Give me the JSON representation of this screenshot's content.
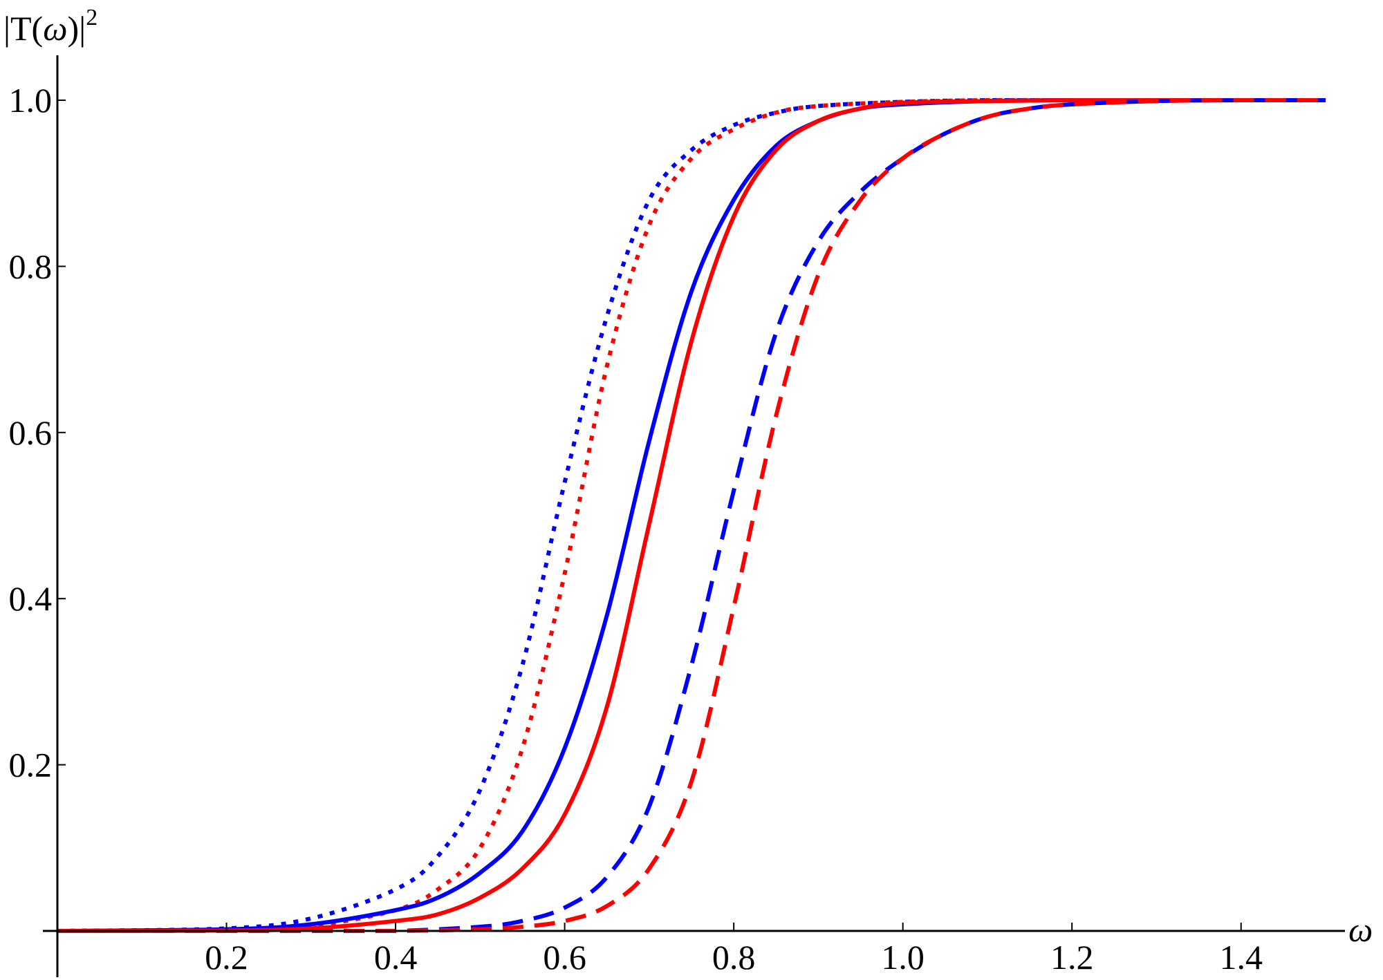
{
  "chart_data": {
    "type": "line",
    "title": "",
    "xlabel": "ω",
    "ylabel_parts": [
      "|T(",
      "ω",
      ")|",
      "2"
    ],
    "xlim": [
      0,
      1.5
    ],
    "ylim": [
      0,
      1.0
    ],
    "x_ticks": [
      0.2,
      0.4,
      0.6,
      0.8,
      1.0,
      1.2,
      1.4
    ],
    "x_tick_labels": [
      "0.2",
      "0.4",
      "0.6",
      "0.8",
      "1.0",
      "1.2",
      "1.4"
    ],
    "y_ticks": [
      0.2,
      0.4,
      0.6,
      0.8,
      1.0
    ],
    "y_tick_labels": [
      "0.2",
      "0.4",
      "0.6",
      "0.8",
      "1.0"
    ],
    "grid": false,
    "legend": "none",
    "series": [
      {
        "color": "#0000ff",
        "style": "dotted",
        "x": [
          0.0,
          0.2,
          0.3,
          0.4,
          0.45,
          0.5,
          0.55,
          0.6,
          0.65,
          0.7,
          0.75,
          0.8,
          0.85,
          0.9,
          1.0,
          1.1,
          1.2,
          1.3,
          1.4,
          1.5
        ],
        "y": [
          0.0,
          0.003,
          0.015,
          0.05,
          0.09,
          0.17,
          0.32,
          0.54,
          0.74,
          0.88,
          0.94,
          0.97,
          0.985,
          0.993,
          0.998,
          1.0,
          1.0,
          1.0,
          1.0,
          1.0
        ]
      },
      {
        "color": "#ff0000",
        "style": "dotted",
        "x": [
          0.0,
          0.2,
          0.3,
          0.4,
          0.45,
          0.5,
          0.55,
          0.6,
          0.65,
          0.7,
          0.75,
          0.8,
          0.85,
          0.9,
          1.0,
          1.1,
          1.2,
          1.3,
          1.4,
          1.5
        ],
        "y": [
          0.0,
          0.001,
          0.006,
          0.025,
          0.05,
          0.1,
          0.22,
          0.43,
          0.68,
          0.85,
          0.93,
          0.965,
          0.985,
          0.993,
          0.998,
          1.0,
          1.0,
          1.0,
          1.0,
          1.0
        ]
      },
      {
        "color": "#0000ff",
        "style": "solid",
        "x": [
          0.0,
          0.2,
          0.3,
          0.4,
          0.45,
          0.5,
          0.55,
          0.6,
          0.65,
          0.7,
          0.75,
          0.8,
          0.85,
          0.9,
          0.95,
          1.0,
          1.1,
          1.2,
          1.3,
          1.4,
          1.5
        ],
        "y": [
          0.0,
          0.002,
          0.008,
          0.025,
          0.04,
          0.07,
          0.12,
          0.22,
          0.38,
          0.59,
          0.77,
          0.88,
          0.945,
          0.975,
          0.99,
          0.995,
          0.999,
          1.0,
          1.0,
          1.0,
          1.0
        ]
      },
      {
        "color": "#ff0000",
        "style": "solid",
        "x": [
          0.0,
          0.2,
          0.3,
          0.4,
          0.45,
          0.5,
          0.55,
          0.6,
          0.65,
          0.7,
          0.75,
          0.8,
          0.85,
          0.9,
          0.95,
          1.0,
          1.1,
          1.2,
          1.3,
          1.4,
          1.5
        ],
        "y": [
          0.0,
          0.0005,
          0.003,
          0.012,
          0.02,
          0.04,
          0.075,
          0.14,
          0.27,
          0.49,
          0.71,
          0.86,
          0.94,
          0.975,
          0.99,
          0.997,
          0.999,
          1.0,
          1.0,
          1.0,
          1.0
        ]
      },
      {
        "color": "#0000ff",
        "style": "dashed",
        "x": [
          0.0,
          0.3,
          0.4,
          0.5,
          0.55,
          0.6,
          0.65,
          0.7,
          0.75,
          0.8,
          0.85,
          0.9,
          0.95,
          1.0,
          1.05,
          1.1,
          1.15,
          1.2,
          1.3,
          1.4,
          1.5
        ],
        "y": [
          0.0,
          0.0,
          0.0,
          0.005,
          0.012,
          0.028,
          0.065,
          0.15,
          0.32,
          0.53,
          0.72,
          0.83,
          0.89,
          0.93,
          0.96,
          0.98,
          0.99,
          0.995,
          0.999,
          1.0,
          1.0
        ]
      },
      {
        "color": "#ff0000",
        "style": "dashed",
        "x": [
          0.0,
          0.3,
          0.4,
          0.5,
          0.55,
          0.6,
          0.65,
          0.7,
          0.75,
          0.8,
          0.85,
          0.9,
          0.95,
          1.0,
          1.05,
          1.1,
          1.15,
          1.2,
          1.3,
          1.4,
          1.5
        ],
        "y": [
          0.0,
          0.0,
          0.0,
          0.002,
          0.005,
          0.012,
          0.03,
          0.075,
          0.18,
          0.39,
          0.62,
          0.79,
          0.88,
          0.93,
          0.96,
          0.98,
          0.99,
          0.995,
          0.999,
          1.0,
          1.0
        ]
      }
    ]
  }
}
